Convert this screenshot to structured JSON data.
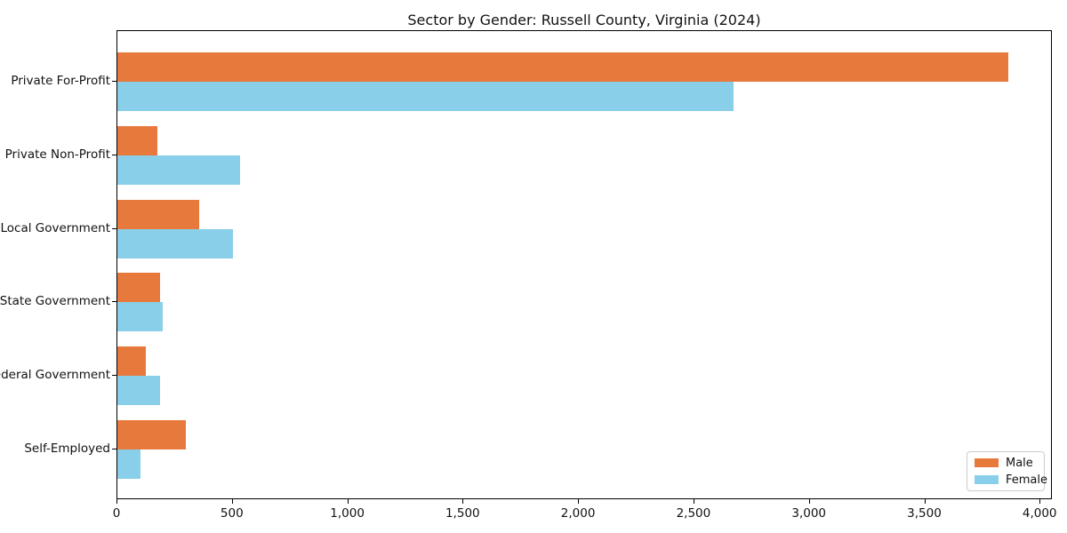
{
  "title": "Sector by Gender: Russell County, Virginia (2024)",
  "chart_data": {
    "type": "bar",
    "orientation": "horizontal",
    "title": "Sector by Gender: Russell County, Virginia (2024)",
    "categories": [
      "Private For-Profit",
      "Private Non-Profit",
      "Local Government",
      "State Government",
      "Federal Government",
      "Self-Employed"
    ],
    "series": [
      {
        "name": "Male",
        "color": "#e8793c",
        "values": [
          3860,
          175,
          355,
          185,
          125,
          295
        ]
      },
      {
        "name": "Female",
        "color": "#89cfe9",
        "values": [
          2670,
          530,
          500,
          195,
          185,
          100
        ]
      }
    ],
    "xlabel": "",
    "ylabel": "",
    "xlim": [
      0,
      4053
    ],
    "x_ticks": [
      0,
      500,
      1000,
      1500,
      2000,
      2500,
      3000,
      3500,
      4000
    ],
    "x_tick_labels": [
      "0",
      "500",
      "1,000",
      "1,500",
      "2,000",
      "2,500",
      "3,000",
      "3,500",
      "4,000"
    ],
    "grid": false,
    "legend_position": "lower-right",
    "axis_color": "#000000",
    "background_color": "#ffffff"
  }
}
